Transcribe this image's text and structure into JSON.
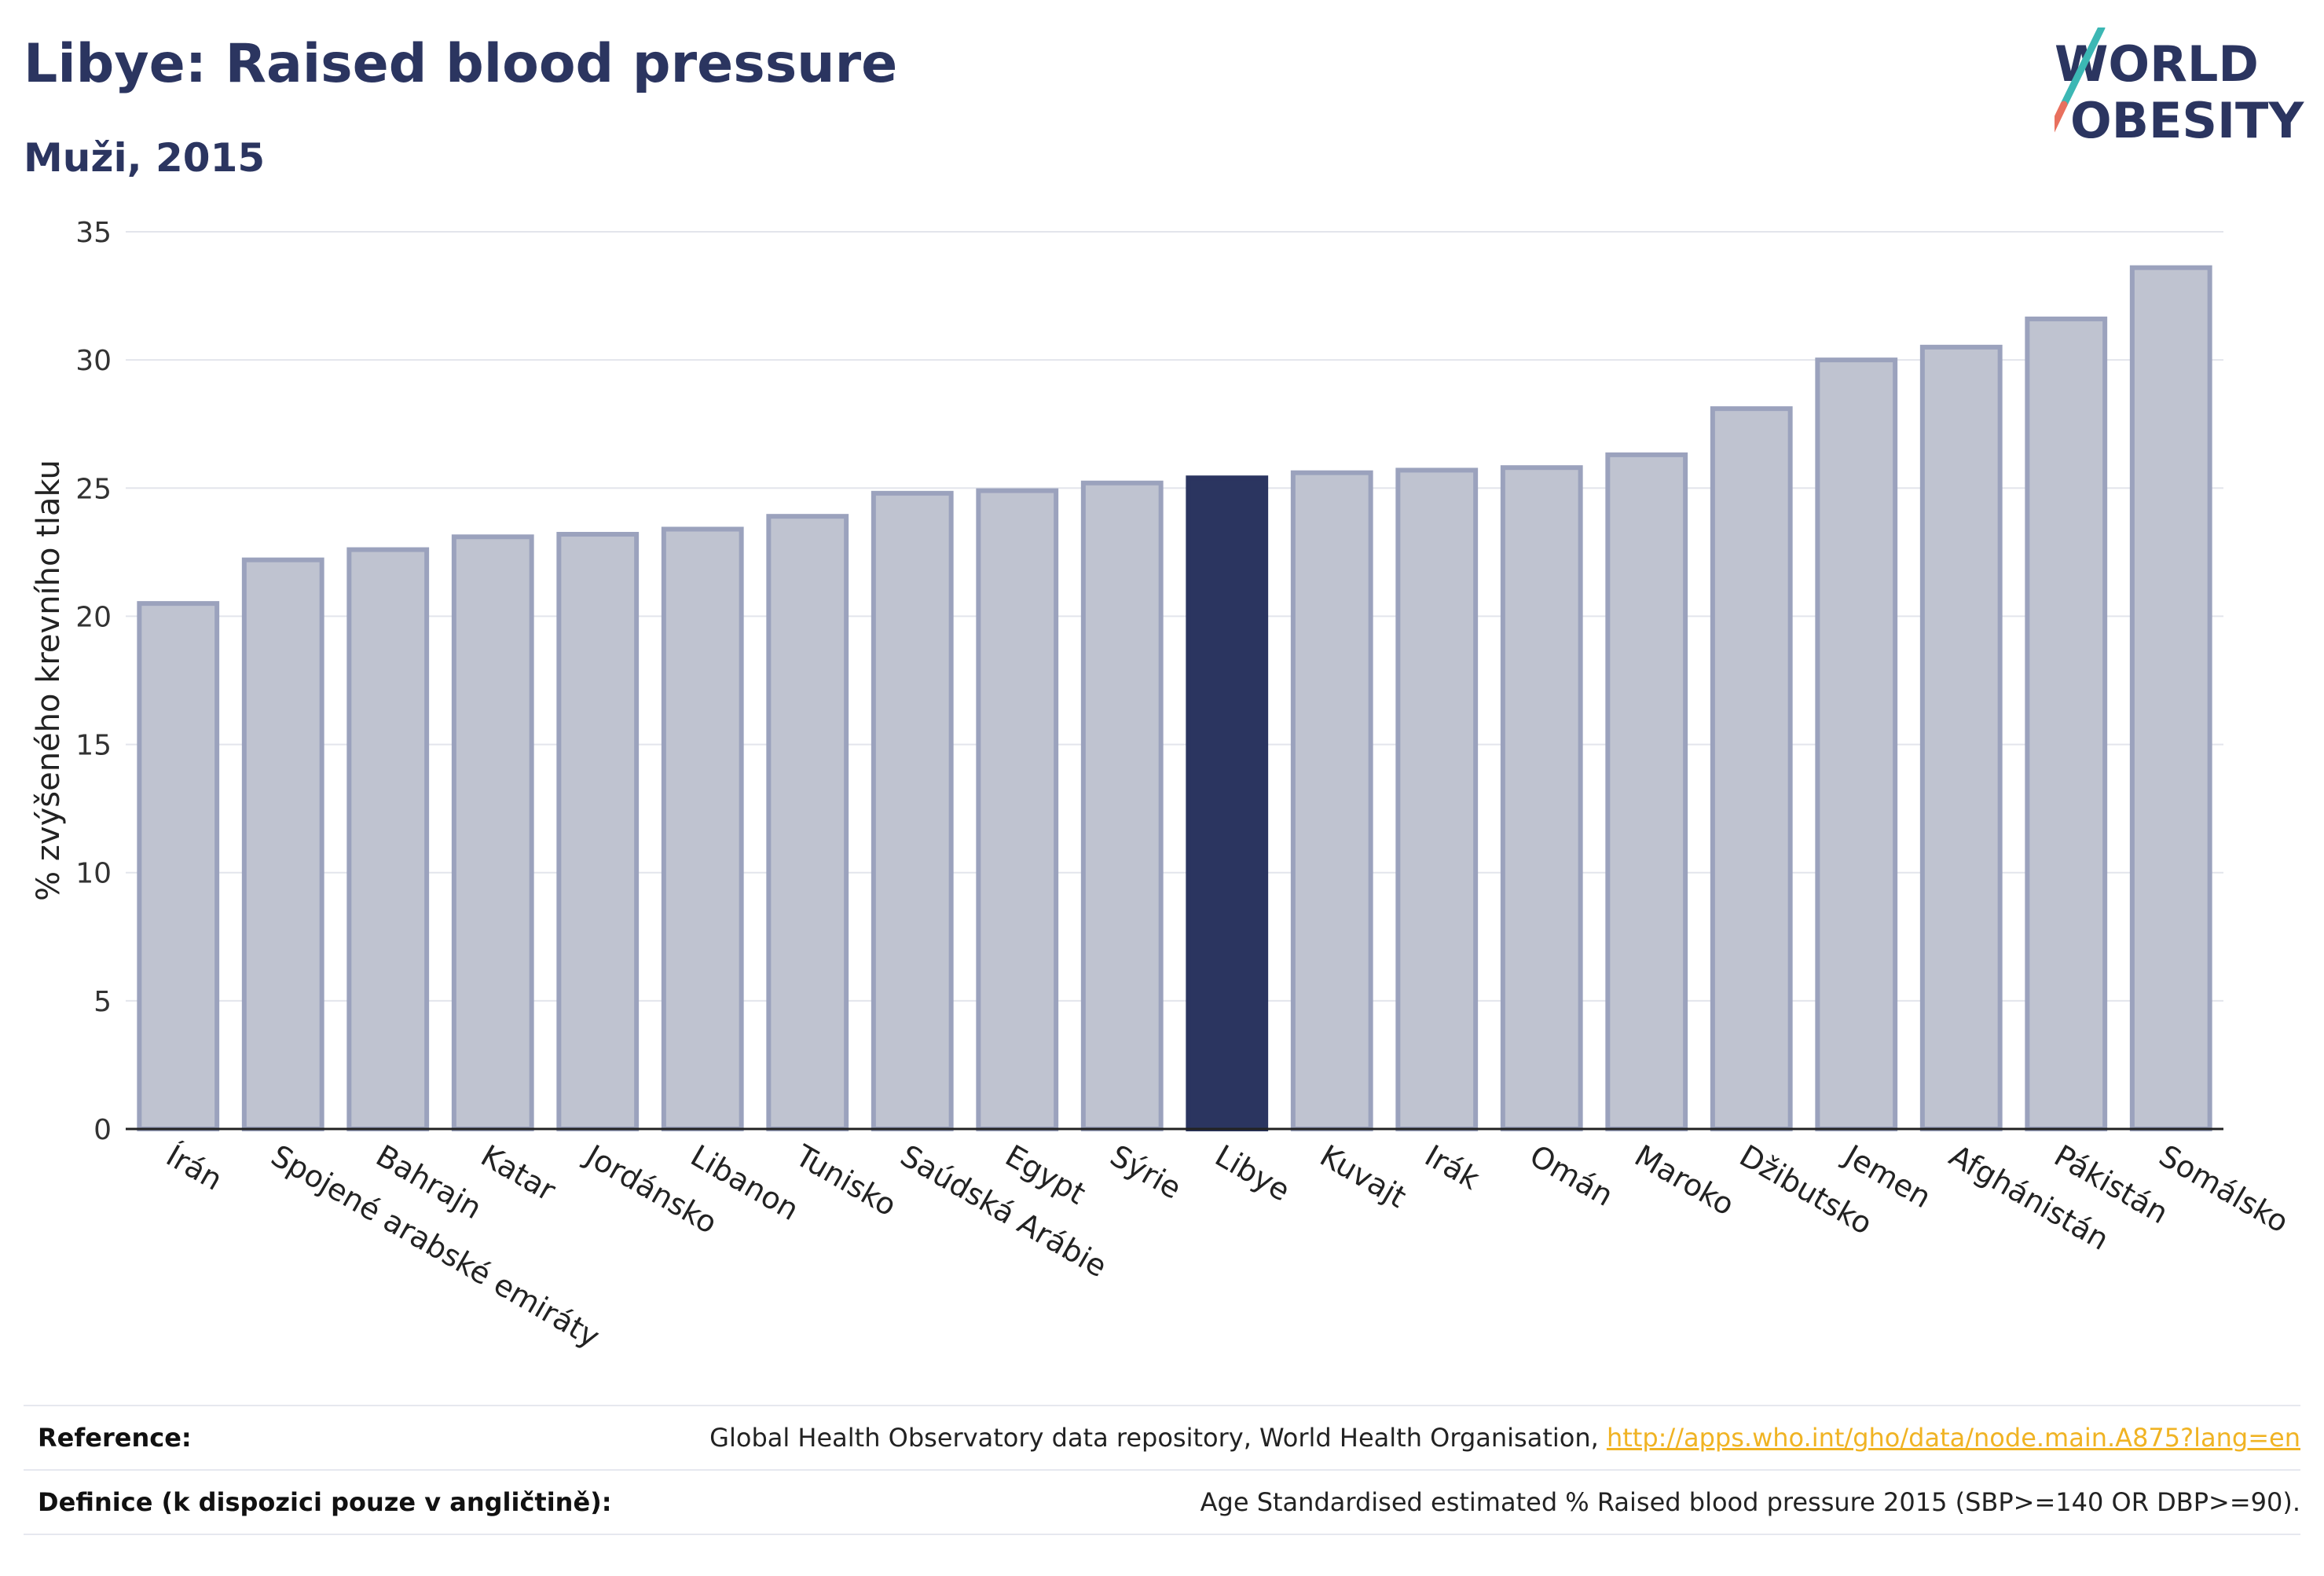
{
  "header": {
    "title": "Libye: Raised blood pressure",
    "subtitle": "Muži, 2015"
  },
  "logo": {
    "line1": "WORLD",
    "line2": "OBESITY"
  },
  "colors": {
    "highlight": "#2b3560",
    "bar": "#bfc3d0",
    "bar_stroke": "#9ba2bd",
    "logo_teal": "#3cb7b4",
    "logo_coral": "#e8705e"
  },
  "chart_data": {
    "type": "bar",
    "title": "Libye: Raised blood pressure",
    "ylabel": "% zvýšeného krevního tlaku",
    "xlabel": "",
    "ylim": [
      0,
      35
    ],
    "yticks": [
      0,
      5,
      10,
      15,
      20,
      25,
      30,
      35
    ],
    "grid": true,
    "highlight": "Libye",
    "categories": [
      "Írán",
      "Spojené arabské emiráty",
      "Bahrajn",
      "Katar",
      "Jordánsko",
      "Libanon",
      "Tunisko",
      "Saúdská Arábie",
      "Egypt",
      "Sýrie",
      "Libye",
      "Kuvajt",
      "Irák",
      "Omán",
      "Maroko",
      "Džibutsko",
      "Jemen",
      "Afghánistán",
      "Pákistán",
      "Somálsko"
    ],
    "values": [
      20.5,
      22.2,
      22.6,
      23.1,
      23.2,
      23.4,
      23.9,
      24.8,
      24.9,
      25.2,
      25.4,
      25.6,
      25.7,
      25.8,
      26.3,
      28.1,
      30.0,
      30.5,
      31.6,
      33.6
    ]
  },
  "footer": {
    "reference_label": "Reference:",
    "reference_text": "Global Health Observatory data repository, World Health Organisation, ",
    "reference_link": "http://apps.who.int/gho/data/node.main.A875?lang=en",
    "definition_label": "Definice (k dispozici pouze v angličtině):",
    "definition_text": "Age Standardised estimated % Raised blood pressure 2015 (SBP>=140 OR DBP>=90)."
  }
}
